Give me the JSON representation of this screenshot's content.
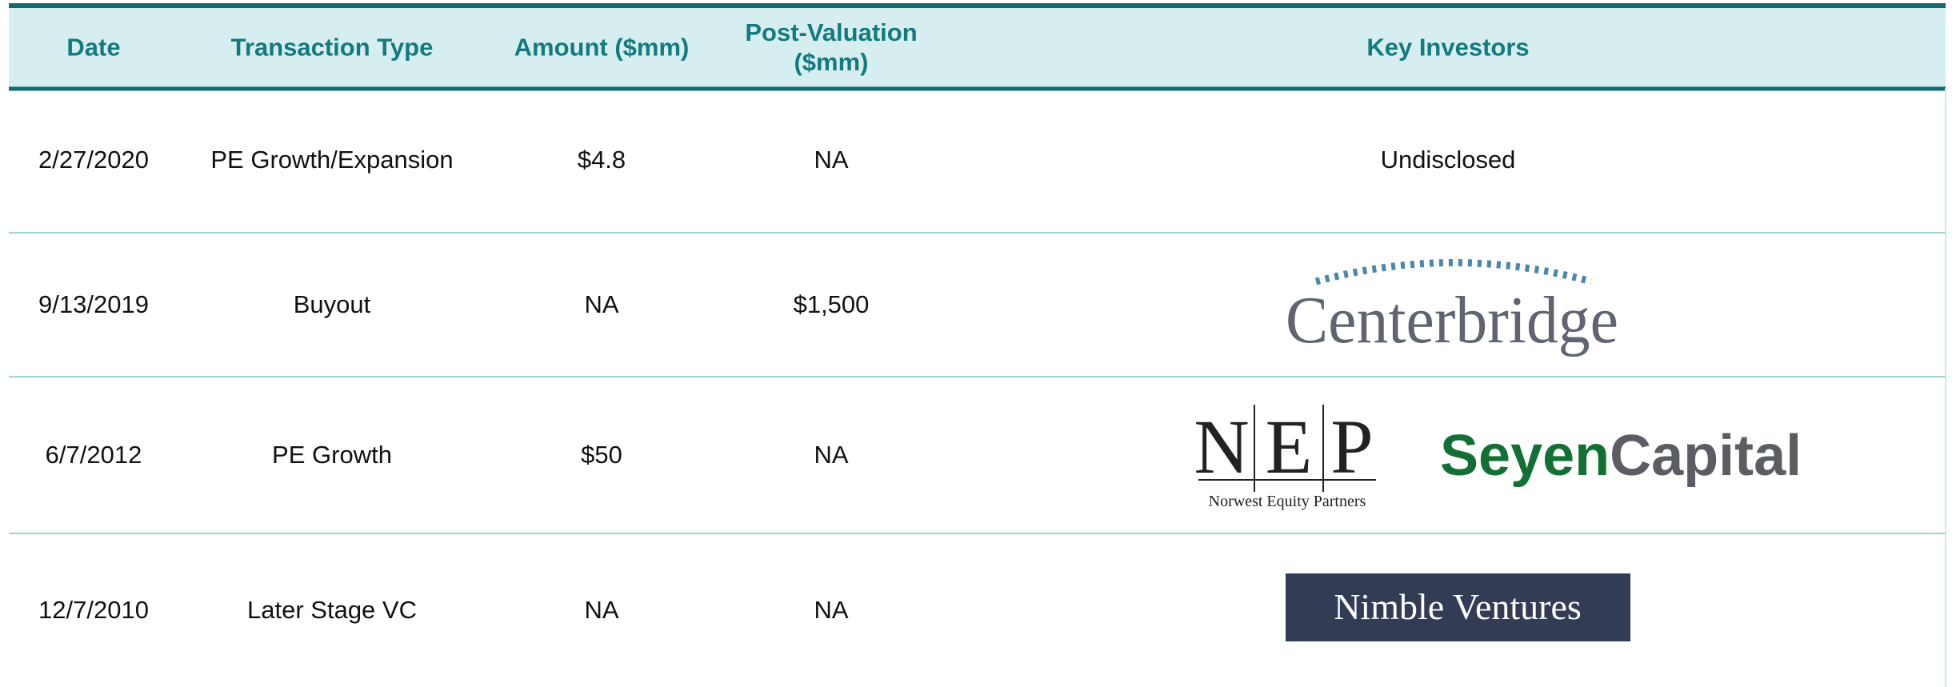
{
  "table": {
    "headers": [
      "Date",
      "Transaction Type",
      "Amount ($mm)",
      "Post-Valuation ($mm)",
      "Key Investors"
    ],
    "rows": [
      {
        "date": "2/27/2020",
        "type": "PE Growth/Expansion",
        "amount": "$4.8",
        "post_valuation": "NA",
        "investors": "Undisclosed"
      },
      {
        "date": "9/13/2019",
        "type": "Buyout",
        "amount": "NA",
        "post_valuation": "$1,500",
        "investors": {
          "logo": "Centerbridge"
        }
      },
      {
        "date": "6/7/2012",
        "type": "PE Growth",
        "amount": "$50",
        "post_valuation": "NA",
        "investors": {
          "logos": [
            {
              "letters": [
                "N",
                "E",
                "P"
              ],
              "caption": "Norwest Equity Partners"
            },
            {
              "part1": "Seyen",
              "part2": "Capital"
            }
          ]
        }
      },
      {
        "date": "12/7/2010",
        "type": "Later Stage VC",
        "amount": "NA",
        "post_valuation": "NA",
        "investors": {
          "logo": "Nimble Ventures"
        }
      }
    ]
  }
}
